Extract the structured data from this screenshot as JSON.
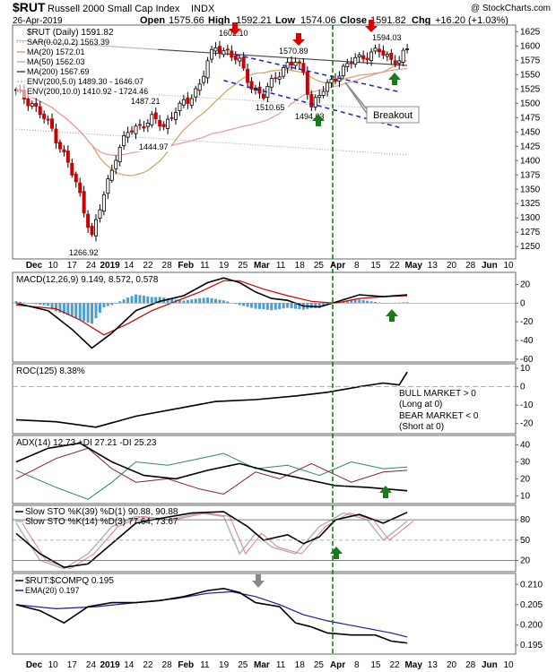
{
  "header": {
    "symbol": "$RUT",
    "name": "Russell 2000 Small Cap Index",
    "exchange": "INDX",
    "watermark": "@ StockCharts.com",
    "date": "26-Apr-2019",
    "open_label": "Open",
    "open": "1575.66",
    "high_label": "High",
    "high": "1592.21",
    "low_label": "Low",
    "low": "1574.06",
    "close_label": "Close",
    "close": "1591.82",
    "chg_label": "Chg",
    "chg": "+16.20 (+1.03%)"
  },
  "legend": {
    "price": "$RUT (Daily) 1591.82",
    "sar": "SAR(0.02,0.2) 1563.39",
    "ma20": "MA(20) 1572.01",
    "ma50": "MA(50) 1562.03",
    "ma200": "MA(200) 1567.69",
    "env5": "ENV(200,5.0) 1489.30 - 1646.07",
    "env10": "ENV(200,10.0) 1410.92 - 1724.46"
  },
  "colors": {
    "up": "#ffffff",
    "down": "#cc0000",
    "wick": "#000000",
    "ma20": "#d2a86b",
    "ma50": "#e8a0a0",
    "ma200": "#444444",
    "env": "#999999",
    "channel": "#1a1acc",
    "vline": "#007700",
    "macd_hist": "#4a9fd0",
    "macd_signal": "#cc0000",
    "adx_plus": "#2e8b57",
    "adx_minus": "#8b1a3a",
    "sto_d": "#e08080",
    "sto_k14": "#b0b0b0",
    "ratio_ema": "#1a1a99",
    "green_arrow": "#1a7a1a",
    "red_arrow": "#dd0000",
    "gray_arrow": "#888888"
  },
  "icons": [
    "red-arrow-down-icon",
    "green-arrow-up-icon",
    "gray-arrow-down-icon"
  ],
  "chart_data": {
    "type": "candlestick",
    "x_ticks": [
      "Dec",
      "10",
      "17",
      "24",
      "2019",
      "14",
      "22",
      "28",
      "Feb",
      "11",
      "19",
      "25",
      "Mar",
      "11",
      "18",
      "25",
      "Apr",
      "8",
      "15",
      "22",
      "May",
      "13",
      "20",
      "28",
      "Jun",
      "10"
    ],
    "price_axis": {
      "ticks": [
        1250,
        1275,
        1300,
        1325,
        1350,
        1375,
        1400,
        1425,
        1450,
        1475,
        1500,
        1525,
        1550,
        1575,
        1600,
        1625
      ],
      "ylim": [
        1230,
        1635
      ]
    },
    "annotations": [
      "1602.10",
      "1570.89",
      "1594.03",
      "1487.21",
      "1510.65",
      "1494.03",
      "1444.97",
      "1266.92",
      "Breakout"
    ],
    "anchors": [
      [
        0,
        1520
      ],
      [
        4,
        1500
      ],
      [
        9,
        1455
      ],
      [
        13,
        1395
      ],
      [
        16,
        1340
      ],
      [
        19,
        1267
      ],
      [
        22,
        1340
      ],
      [
        25,
        1410
      ],
      [
        28,
        1448
      ],
      [
        31,
        1462
      ],
      [
        34,
        1472
      ],
      [
        37,
        1460
      ],
      [
        40,
        1490
      ],
      [
        43,
        1502
      ],
      [
        46,
        1535
      ],
      [
        48,
        1572
      ],
      [
        50,
        1596
      ],
      [
        53,
        1592
      ],
      [
        56,
        1570
      ],
      [
        59,
        1530
      ],
      [
        62,
        1512
      ],
      [
        65,
        1548
      ],
      [
        68,
        1568
      ],
      [
        70,
        1570
      ],
      [
        72,
        1555
      ],
      [
        74,
        1496
      ],
      [
        77,
        1522
      ],
      [
        80,
        1548
      ],
      [
        83,
        1565
      ],
      [
        85,
        1578
      ],
      [
        88,
        1585
      ],
      [
        91,
        1590
      ],
      [
        94,
        1578
      ],
      [
        96,
        1575
      ],
      [
        98,
        1592
      ]
    ],
    "channel_lines": [
      {
        "from": [
          55,
          1585
        ],
        "to": [
          96,
          1520
        ]
      },
      {
        "from": [
          52,
          1540
        ],
        "to": [
          96,
          1458
        ]
      }
    ],
    "panels": [
      {
        "name": "MACD",
        "label": "MACD(12,26,9) 9.149, 8.572, 0.578",
        "ticks": [
          "20",
          "0",
          "-20",
          "-40",
          "-60"
        ],
        "ylim": [
          -62,
          32
        ],
        "macd": [
          [
            0,
            0
          ],
          [
            8,
            -8
          ],
          [
            14,
            -28
          ],
          [
            19,
            -48
          ],
          [
            24,
            -32
          ],
          [
            30,
            -8
          ],
          [
            36,
            2
          ],
          [
            42,
            8
          ],
          [
            48,
            22
          ],
          [
            52,
            27
          ],
          [
            56,
            22
          ],
          [
            60,
            12
          ],
          [
            64,
            5
          ],
          [
            68,
            3
          ],
          [
            72,
            -3
          ],
          [
            76,
            -4
          ],
          [
            80,
            1
          ],
          [
            86,
            9
          ],
          [
            92,
            7
          ],
          [
            98,
            9
          ]
        ],
        "signal": [
          [
            0,
            -2
          ],
          [
            10,
            -6
          ],
          [
            16,
            -18
          ],
          [
            22,
            -34
          ],
          [
            28,
            -22
          ],
          [
            34,
            -8
          ],
          [
            40,
            2
          ],
          [
            46,
            12
          ],
          [
            52,
            24
          ],
          [
            56,
            24
          ],
          [
            62,
            15
          ],
          [
            68,
            8
          ],
          [
            74,
            2
          ],
          [
            80,
            0
          ],
          [
            86,
            5
          ],
          [
            92,
            7
          ],
          [
            98,
            8
          ]
        ]
      },
      {
        "name": "ROC",
        "label": "ROC(125) 8.38%",
        "ticks": [
          "10",
          "0",
          "-10",
          "-20"
        ],
        "ylim": [
          -25,
          12
        ],
        "notes": [
          "BULL MARKET > 0",
          "(Long at 0)",
          "BEAR MARKET < 0",
          "(Short at 0)"
        ],
        "roc": [
          [
            0,
            -18
          ],
          [
            10,
            -19
          ],
          [
            20,
            -22
          ],
          [
            30,
            -16
          ],
          [
            40,
            -12
          ],
          [
            50,
            -8
          ],
          [
            60,
            -7
          ],
          [
            70,
            -5
          ],
          [
            78,
            -3
          ],
          [
            86,
            0
          ],
          [
            92,
            2
          ],
          [
            96,
            1
          ],
          [
            98,
            8
          ]
        ]
      },
      {
        "name": "ADX",
        "label": "ADX(14) 12.73 +DI 27.21 -DI 25.23",
        "ticks": [
          "40",
          "30",
          "20",
          "10"
        ],
        "ylim": [
          6,
          45
        ],
        "adx": [
          [
            0,
            30
          ],
          [
            8,
            38
          ],
          [
            16,
            41
          ],
          [
            24,
            30
          ],
          [
            32,
            22
          ],
          [
            40,
            20
          ],
          [
            48,
            25
          ],
          [
            56,
            29
          ],
          [
            64,
            24
          ],
          [
            72,
            20
          ],
          [
            80,
            16
          ],
          [
            88,
            15
          ],
          [
            98,
            13
          ]
        ],
        "plus_di": [
          [
            0,
            25
          ],
          [
            10,
            15
          ],
          [
            18,
            8
          ],
          [
            24,
            18
          ],
          [
            30,
            30
          ],
          [
            38,
            28
          ],
          [
            46,
            32
          ],
          [
            52,
            35
          ],
          [
            60,
            26
          ],
          [
            68,
            28
          ],
          [
            76,
            22
          ],
          [
            84,
            30
          ],
          [
            92,
            26
          ],
          [
            98,
            27
          ]
        ],
        "minus_di": [
          [
            0,
            20
          ],
          [
            10,
            32
          ],
          [
            18,
            38
          ],
          [
            24,
            26
          ],
          [
            30,
            18
          ],
          [
            38,
            20
          ],
          [
            46,
            14
          ],
          [
            52,
            11
          ],
          [
            60,
            24
          ],
          [
            66,
            20
          ],
          [
            74,
            29
          ],
          [
            84,
            18
          ],
          [
            92,
            24
          ],
          [
            98,
            25
          ]
        ]
      },
      {
        "name": "STO",
        "label1": "Slow STO %K(39) %D(1) 90.88, 90.88",
        "label2": "Slow STO %K(14) %D(3) 77.64, 73.67",
        "ticks": [
          "80",
          "50",
          "20"
        ],
        "ylim": [
          5,
          100
        ],
        "k39": [
          [
            0,
            60
          ],
          [
            6,
            30
          ],
          [
            12,
            10
          ],
          [
            18,
            15
          ],
          [
            24,
            45
          ],
          [
            30,
            75
          ],
          [
            36,
            82
          ],
          [
            44,
            90
          ],
          [
            52,
            92
          ],
          [
            58,
            70
          ],
          [
            62,
            50
          ],
          [
            68,
            58
          ],
          [
            72,
            45
          ],
          [
            76,
            55
          ],
          [
            80,
            80
          ],
          [
            86,
            88
          ],
          [
            92,
            75
          ],
          [
            98,
            91
          ]
        ],
        "k14": [
          [
            0,
            75
          ],
          [
            6,
            20
          ],
          [
            12,
            8
          ],
          [
            18,
            30
          ],
          [
            24,
            70
          ],
          [
            30,
            85
          ],
          [
            38,
            80
          ],
          [
            46,
            90
          ],
          [
            52,
            85
          ],
          [
            56,
            30
          ],
          [
            60,
            60
          ],
          [
            64,
            40
          ],
          [
            70,
            30
          ],
          [
            76,
            70
          ],
          [
            82,
            90
          ],
          [
            88,
            80
          ],
          [
            92,
            50
          ],
          [
            98,
            78
          ]
        ]
      },
      {
        "name": "RATIO",
        "label": "$RUT:$COMPQ 0.195",
        "ema_label": "EMA(20) 0.197",
        "ticks": [
          "0.210",
          "0.205",
          "0.200",
          "0.195"
        ],
        "ylim": [
          0.193,
          0.2125
        ],
        "ratio": [
          [
            0,
            0.205
          ],
          [
            6,
            0.2035
          ],
          [
            12,
            0.2005
          ],
          [
            18,
            0.2045
          ],
          [
            24,
            0.2055
          ],
          [
            30,
            0.2055
          ],
          [
            36,
            0.206
          ],
          [
            42,
            0.207
          ],
          [
            48,
            0.2085
          ],
          [
            52,
            0.209
          ],
          [
            56,
            0.208
          ],
          [
            60,
            0.2055
          ],
          [
            66,
            0.2045
          ],
          [
            70,
            0.2005
          ],
          [
            74,
            0.1995
          ],
          [
            78,
            0.198
          ],
          [
            84,
            0.1975
          ],
          [
            90,
            0.1975
          ],
          [
            94,
            0.196
          ],
          [
            98,
            0.1955
          ]
        ],
        "ema": [
          [
            0,
            0.205
          ],
          [
            10,
            0.204
          ],
          [
            20,
            0.2045
          ],
          [
            30,
            0.2055
          ],
          [
            40,
            0.2065
          ],
          [
            48,
            0.2078
          ],
          [
            54,
            0.2082
          ],
          [
            60,
            0.207
          ],
          [
            66,
            0.205
          ],
          [
            72,
            0.2025
          ],
          [
            78,
            0.201
          ],
          [
            86,
            0.1995
          ],
          [
            94,
            0.198
          ],
          [
            98,
            0.197
          ]
        ]
      }
    ]
  }
}
